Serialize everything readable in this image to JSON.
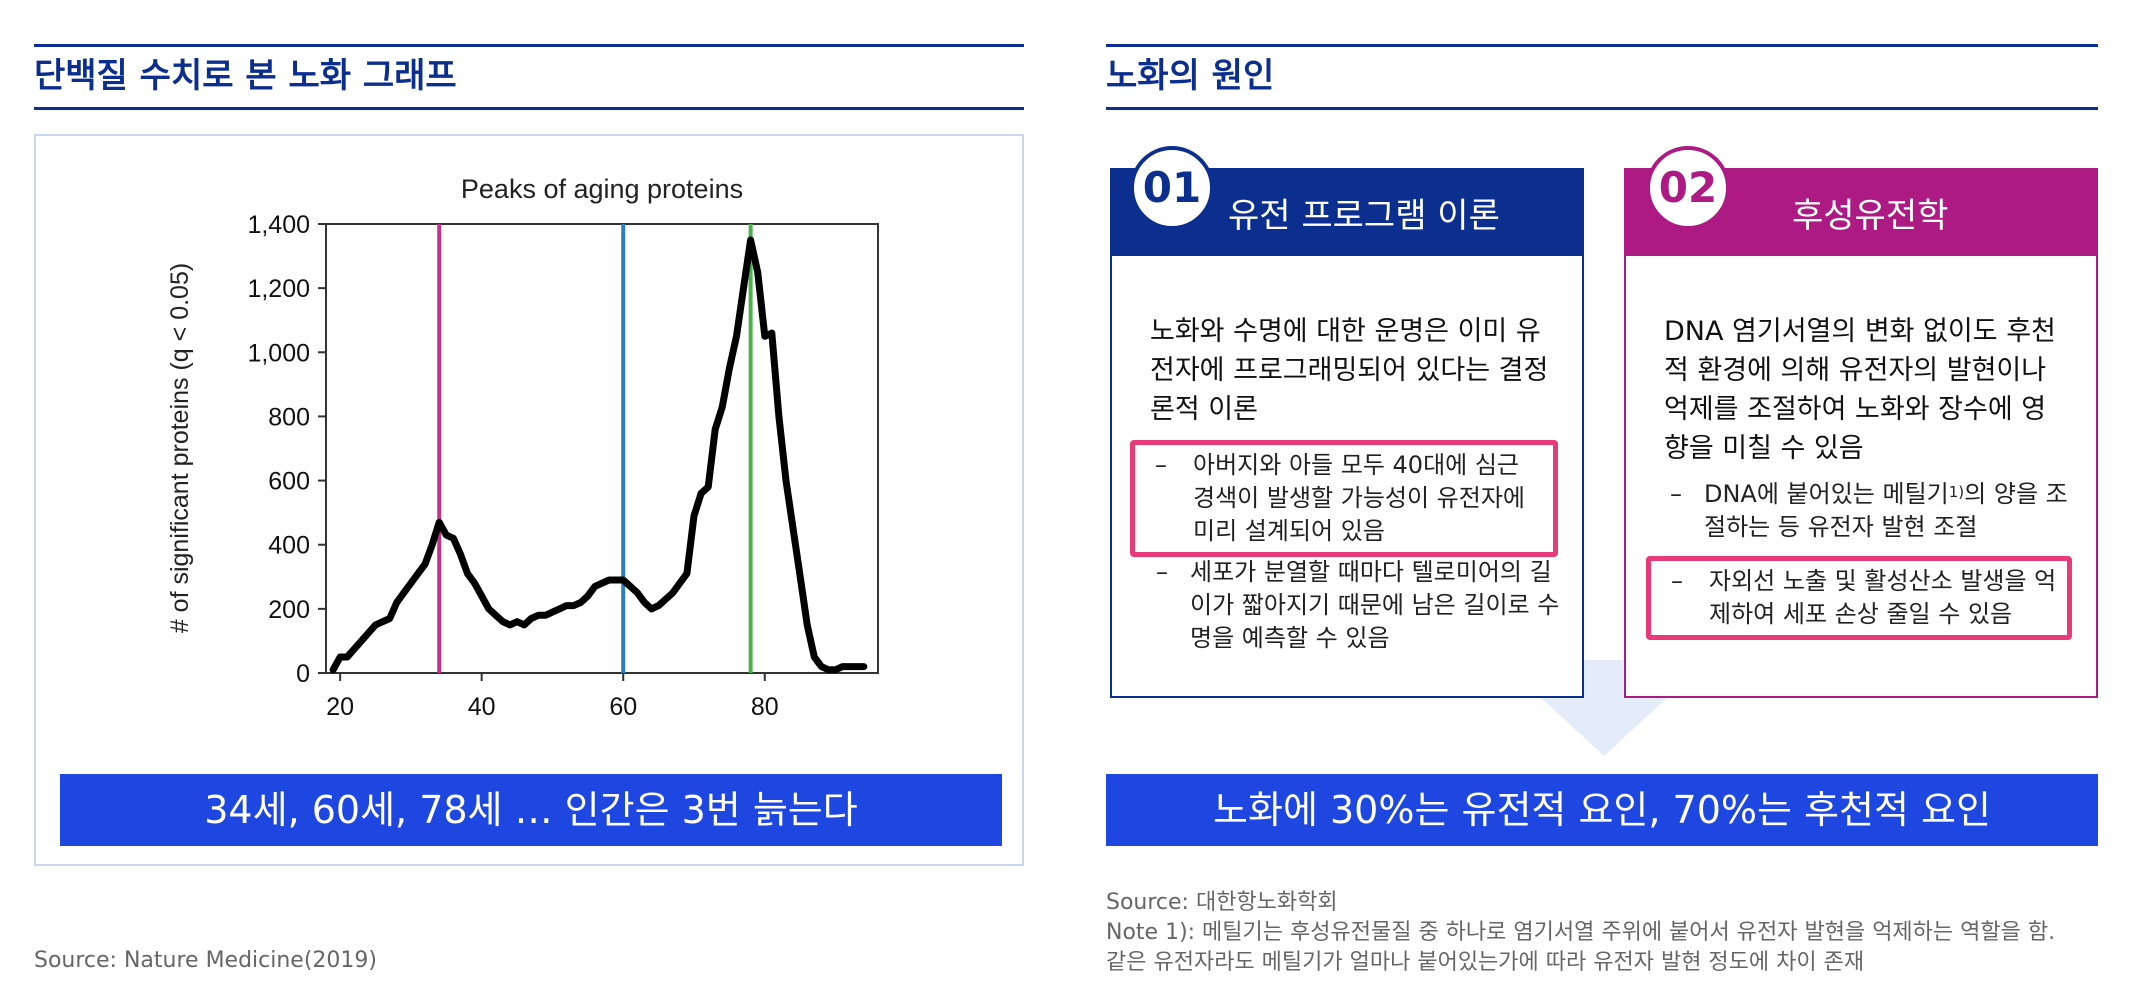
{
  "left": {
    "title": "단백질 수치로 본 노화 그래프",
    "banner": "34세, 60세, 78세 … 인간은 3번 늙는다",
    "source": "Source: Nature Medicine(2019)"
  },
  "right": {
    "title": "노화의 원인",
    "card1": {
      "number": "01",
      "heading": "유전 프로그램 이론",
      "desc": "노화와 수명에 대한 운명은 이미 유전자에 프로그래밍되어 있다는 결정론적 이론",
      "bullet1": "아버지와 아들 모두 40대에 심근 경색이 발생할 가능성이 유전자에 미리 설계되어 있음",
      "bullet2": "세포가 분열할 때마다 텔로미어의 길이가 짧아지기 때문에 남은 길이로 수명을 예측할 수 있음"
    },
    "card2": {
      "number": "02",
      "heading": "후성유전학",
      "desc": "DNA 염기서열의 변화 없이도 후천적 환경에 의해 유전자의 발현이나 억제를 조절하여 노화와 장수에 영향을 미칠 수 있음",
      "bullet1_pre": "DNA에 붙어있는 메틸기",
      "bullet1_sup": "1)",
      "bullet1_post": "의 양을 조절하는 등 유전자 발현 조절",
      "bullet2": "자외선 노출 및 활성산소 발생을 억제하여 세포 손상 줄일 수 있음"
    },
    "banner": "노화에 30%는 유전적 요인, 70%는 후천적 요인",
    "source": "Source: 대한항노화학회",
    "note1": "Note 1): 메틸기는 후성유전물질 중 하나로 염기서열 주위에 붙어서 유전자 발현을 억제하는 역할을 함.",
    "note2": "같은 유전자라도 메틸기가 얼마나 붙어있는가에 따라 유전자 발현 정도에 차이 존재"
  },
  "chart_data": {
    "type": "line",
    "title": "Peaks of aging proteins",
    "ylabel": "# of significant proteins (q < 0.05)",
    "xlabel": "",
    "xlim": [
      18,
      96
    ],
    "ylim": [
      0,
      1400
    ],
    "xticks": [
      "20",
      "40",
      "60",
      "80"
    ],
    "yticks": [
      "0",
      "200",
      "400",
      "600",
      "800",
      "1,000",
      "1,200",
      "1,400"
    ],
    "grid": false,
    "vlines": [
      {
        "x": 34,
        "color": "#c2338a"
      },
      {
        "x": 60,
        "color": "#2c7fb8"
      },
      {
        "x": 78,
        "color": "#4caf50"
      }
    ],
    "series": [
      {
        "color": "#000000",
        "x": [
          19,
          20,
          21,
          23,
          25,
          27,
          28,
          29,
          30,
          31,
          32,
          33,
          34,
          35,
          36,
          37,
          38,
          39,
          40,
          41,
          42,
          43,
          44,
          45,
          46,
          47,
          48,
          49,
          50,
          51,
          52,
          53,
          54,
          55,
          56,
          57,
          58,
          59,
          60,
          61,
          62,
          63,
          64,
          65,
          66,
          67,
          68,
          69,
          70,
          71,
          72,
          73,
          74,
          75,
          76,
          77,
          78,
          79,
          80,
          81,
          82,
          83,
          84,
          85,
          86,
          87,
          88,
          89,
          90,
          91,
          92,
          93,
          94
        ],
        "y": [
          10,
          50,
          50,
          100,
          150,
          170,
          220,
          250,
          280,
          310,
          340,
          400,
          470,
          430,
          420,
          370,
          310,
          280,
          240,
          200,
          180,
          160,
          150,
          160,
          150,
          170,
          180,
          180,
          190,
          200,
          210,
          210,
          220,
          240,
          270,
          280,
          290,
          290,
          290,
          270,
          250,
          220,
          200,
          210,
          230,
          250,
          280,
          310,
          490,
          560,
          580,
          760,
          830,
          950,
          1050,
          1200,
          1350,
          1250,
          1050,
          1060,
          800,
          600,
          450,
          300,
          150,
          50,
          20,
          10,
          10,
          20,
          20,
          20,
          20
        ]
      }
    ]
  }
}
